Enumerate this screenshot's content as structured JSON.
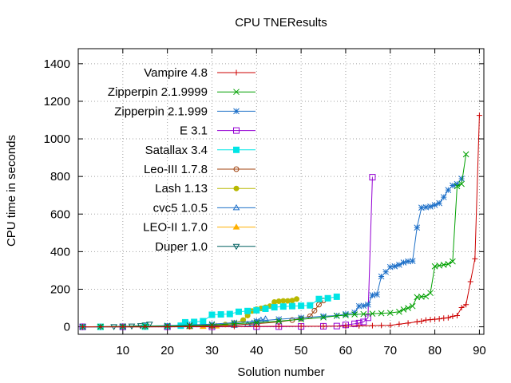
{
  "chart_data": {
    "type": "line",
    "title": "CPU TNEResults",
    "xlabel": "Solution number",
    "ylabel": "CPU time in seconds",
    "xlim": [
      0,
      91
    ],
    "ylim": [
      -40,
      1480
    ],
    "xticks": [
      10,
      20,
      30,
      40,
      50,
      60,
      70,
      80,
      90
    ],
    "yticks": [
      0,
      200,
      400,
      600,
      800,
      1000,
      1200,
      1400
    ],
    "grid": true,
    "legend_position": "top-left",
    "series": [
      {
        "name": "Vampire 4.8",
        "color": "#cc0000",
        "marker": "plus",
        "values": [
          [
            1,
            0
          ],
          [
            5,
            0
          ],
          [
            10,
            0
          ],
          [
            15,
            0
          ],
          [
            20,
            0
          ],
          [
            25,
            1
          ],
          [
            30,
            1
          ],
          [
            35,
            2
          ],
          [
            40,
            2
          ],
          [
            45,
            3
          ],
          [
            50,
            3
          ],
          [
            55,
            3
          ],
          [
            60,
            4
          ],
          [
            63,
            5
          ],
          [
            66,
            6
          ],
          [
            68,
            7
          ],
          [
            70,
            8
          ],
          [
            72,
            14
          ],
          [
            74,
            20
          ],
          [
            76,
            27
          ],
          [
            77,
            30
          ],
          [
            78,
            36
          ],
          [
            79,
            38
          ],
          [
            80,
            40
          ],
          [
            81,
            42
          ],
          [
            82,
            46
          ],
          [
            83,
            48
          ],
          [
            84,
            56
          ],
          [
            85,
            60
          ],
          [
            86,
            102
          ],
          [
            87,
            118
          ],
          [
            88,
            240
          ],
          [
            89,
            362
          ],
          [
            90,
            1125
          ]
        ]
      },
      {
        "name": "Zipperpin 2.1.9999",
        "color": "#00a000",
        "marker": "x",
        "values": [
          [
            1,
            0
          ],
          [
            5,
            1
          ],
          [
            10,
            2
          ],
          [
            15,
            3
          ],
          [
            20,
            4
          ],
          [
            25,
            6
          ],
          [
            30,
            10
          ],
          [
            35,
            16
          ],
          [
            40,
            22
          ],
          [
            45,
            30
          ],
          [
            50,
            40
          ],
          [
            55,
            50
          ],
          [
            58,
            58
          ],
          [
            60,
            62
          ],
          [
            62,
            66
          ],
          [
            64,
            68
          ],
          [
            66,
            70
          ],
          [
            68,
            72
          ],
          [
            70,
            74
          ],
          [
            72,
            80
          ],
          [
            73,
            92
          ],
          [
            74,
            100
          ],
          [
            75,
            110
          ],
          [
            76,
            158
          ],
          [
            77,
            160
          ],
          [
            78,
            162
          ],
          [
            79,
            180
          ],
          [
            80,
            322
          ],
          [
            81,
            326
          ],
          [
            82,
            330
          ],
          [
            83,
            334
          ],
          [
            84,
            348
          ],
          [
            85,
            748
          ],
          [
            86,
            760
          ],
          [
            87,
            918
          ]
        ]
      },
      {
        "name": "Zipperpin 2.1.999",
        "color": "#1e70c8",
        "marker": "star",
        "values": [
          [
            1,
            0
          ],
          [
            5,
            1
          ],
          [
            10,
            2
          ],
          [
            15,
            4
          ],
          [
            20,
            6
          ],
          [
            25,
            10
          ],
          [
            30,
            14
          ],
          [
            35,
            22
          ],
          [
            40,
            30
          ],
          [
            45,
            40
          ],
          [
            50,
            48
          ],
          [
            55,
            56
          ],
          [
            58,
            60
          ],
          [
            60,
            68
          ],
          [
            62,
            76
          ],
          [
            63,
            110
          ],
          [
            64,
            112
          ],
          [
            65,
            118
          ],
          [
            66,
            168
          ],
          [
            67,
            172
          ],
          [
            68,
            268
          ],
          [
            69,
            292
          ],
          [
            70,
            318
          ],
          [
            71,
            322
          ],
          [
            72,
            330
          ],
          [
            73,
            342
          ],
          [
            74,
            348
          ],
          [
            75,
            350
          ],
          [
            76,
            528
          ],
          [
            77,
            634
          ],
          [
            78,
            636
          ],
          [
            79,
            640
          ],
          [
            80,
            648
          ],
          [
            81,
            658
          ],
          [
            82,
            690
          ],
          [
            83,
            728
          ],
          [
            84,
            752
          ],
          [
            85,
            760
          ],
          [
            86,
            788
          ]
        ]
      },
      {
        "name": "E 3.1",
        "color": "#9400d3",
        "marker": "square-open",
        "values": [
          [
            1,
            0
          ],
          [
            10,
            0
          ],
          [
            20,
            0
          ],
          [
            30,
            0
          ],
          [
            40,
            1
          ],
          [
            45,
            1
          ],
          [
            50,
            2
          ],
          [
            55,
            3
          ],
          [
            58,
            4
          ],
          [
            60,
            10
          ],
          [
            62,
            16
          ],
          [
            63,
            20
          ],
          [
            64,
            26
          ],
          [
            65,
            48
          ],
          [
            66,
            796
          ]
        ]
      },
      {
        "name": "Satallax 3.4",
        "color": "#00e5e5",
        "marker": "square-filled",
        "values": [
          [
            1,
            0
          ],
          [
            5,
            0
          ],
          [
            10,
            0
          ],
          [
            15,
            1
          ],
          [
            20,
            2
          ],
          [
            23,
            6
          ],
          [
            24,
            24
          ],
          [
            26,
            26
          ],
          [
            28,
            30
          ],
          [
            30,
            64
          ],
          [
            32,
            66
          ],
          [
            34,
            68
          ],
          [
            36,
            80
          ],
          [
            38,
            84
          ],
          [
            40,
            88
          ],
          [
            42,
            96
          ],
          [
            44,
            104
          ],
          [
            46,
            108
          ],
          [
            48,
            110
          ],
          [
            50,
            112
          ],
          [
            52,
            114
          ],
          [
            54,
            148
          ],
          [
            56,
            152
          ],
          [
            58,
            160
          ]
        ]
      },
      {
        "name": "Leo-III 1.7.8",
        "color": "#a0410d",
        "marker": "circle-open",
        "values": [
          [
            1,
            0
          ],
          [
            10,
            1
          ],
          [
            20,
            2
          ],
          [
            25,
            3
          ],
          [
            30,
            6
          ],
          [
            35,
            10
          ],
          [
            40,
            16
          ],
          [
            45,
            26
          ],
          [
            48,
            36
          ],
          [
            50,
            44
          ],
          [
            52,
            56
          ],
          [
            53,
            86
          ],
          [
            54,
            118
          ],
          [
            55,
            140
          ]
        ]
      },
      {
        "name": "Lash 1.13",
        "color": "#b8b800",
        "marker": "circle-filled",
        "values": [
          [
            1,
            0
          ],
          [
            5,
            0
          ],
          [
            10,
            0
          ],
          [
            15,
            0
          ],
          [
            20,
            1
          ],
          [
            25,
            2
          ],
          [
            30,
            6
          ],
          [
            33,
            12
          ],
          [
            35,
            20
          ],
          [
            37,
            36
          ],
          [
            38,
            60
          ],
          [
            39,
            84
          ],
          [
            40,
            94
          ],
          [
            41,
            98
          ],
          [
            42,
            104
          ],
          [
            43,
            110
          ],
          [
            44,
            132
          ],
          [
            45,
            136
          ],
          [
            46,
            138
          ],
          [
            47,
            138
          ],
          [
            48,
            140
          ],
          [
            49,
            148
          ]
        ]
      },
      {
        "name": "cvc5 1.0.5",
        "color": "#1e70c8",
        "marker": "triangle-open",
        "values": [
          [
            1,
            0
          ],
          [
            10,
            0
          ],
          [
            20,
            1
          ],
          [
            25,
            2
          ],
          [
            30,
            4
          ],
          [
            35,
            8
          ],
          [
            38,
            14
          ],
          [
            39,
            20
          ],
          [
            40,
            28
          ],
          [
            41,
            36
          ],
          [
            42,
            42
          ]
        ]
      },
      {
        "name": "LEO-II 1.7.0",
        "color": "#ffb000",
        "marker": "triangle-filled",
        "values": [
          [
            1,
            0
          ],
          [
            5,
            0
          ],
          [
            10,
            0
          ],
          [
            15,
            0
          ],
          [
            20,
            1
          ],
          [
            25,
            1
          ],
          [
            28,
            2
          ],
          [
            30,
            3
          ],
          [
            31,
            4
          ]
        ]
      },
      {
        "name": "Duper 1.0",
        "color": "#006060",
        "marker": "triangle-down-open",
        "values": [
          [
            1,
            0
          ],
          [
            5,
            0
          ],
          [
            8,
            1
          ],
          [
            10,
            2
          ],
          [
            12,
            4
          ],
          [
            14,
            6
          ],
          [
            15,
            10
          ],
          [
            16,
            14
          ]
        ]
      }
    ]
  }
}
